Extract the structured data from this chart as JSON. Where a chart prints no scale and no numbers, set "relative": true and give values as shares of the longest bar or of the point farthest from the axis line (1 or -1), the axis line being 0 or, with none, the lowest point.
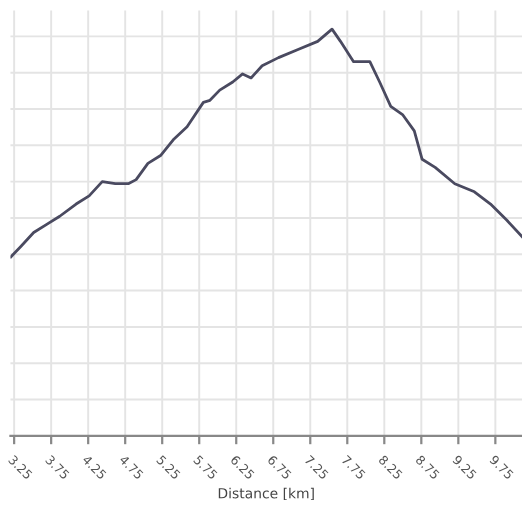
{
  "chart_data": {
    "type": "line",
    "xlabel": "Distance [km]",
    "relative": true,
    "grid": true,
    "xlim": [
      3.2,
      10.11
    ],
    "xticks": [
      3.25,
      3.75,
      4.25,
      4.75,
      5.25,
      5.75,
      6.25,
      6.75,
      7.25,
      7.75,
      8.25,
      8.75,
      9.25,
      9.75
    ],
    "series": [
      {
        "color": "#4a4a60",
        "x": [
          3.205,
          3.337,
          3.514,
          3.69,
          3.866,
          4.087,
          4.263,
          4.44,
          4.616,
          4.792,
          4.898,
          5.057,
          5.233,
          5.41,
          5.586,
          5.806,
          5.895,
          6.027,
          6.203,
          6.336,
          6.45,
          6.6,
          6.821,
          7.085,
          7.35,
          7.544,
          7.658,
          7.835,
          7.923,
          8.055,
          8.187,
          8.337,
          8.496,
          8.655,
          8.761,
          8.937,
          9.202,
          9.467,
          9.685,
          9.906,
          10.109
        ],
        "values": [
          0.44,
          0.465,
          0.5,
          0.52,
          0.54,
          0.57,
          0.59,
          0.625,
          0.62,
          0.62,
          0.63,
          0.67,
          0.69,
          0.73,
          0.76,
          0.82,
          0.825,
          0.85,
          0.87,
          0.89,
          0.88,
          0.91,
          0.93,
          0.95,
          0.97,
          1.0,
          0.97,
          0.92,
          0.92,
          0.92,
          0.87,
          0.81,
          0.79,
          0.75,
          0.68,
          0.66,
          0.62,
          0.6,
          0.57,
          0.53,
          0.49
        ]
      }
    ]
  }
}
